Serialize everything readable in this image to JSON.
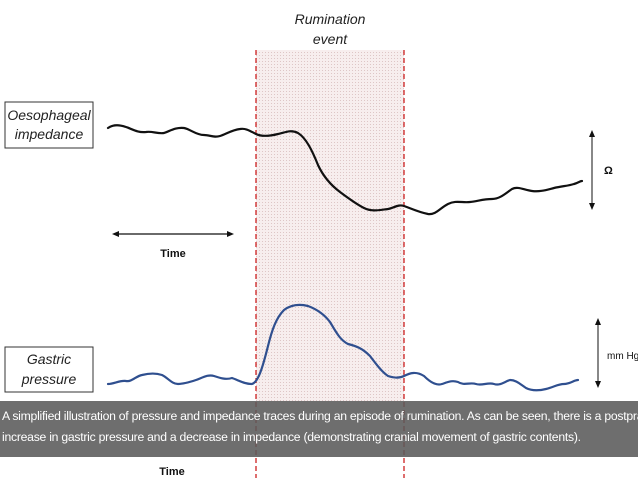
{
  "event_label": {
    "line1": "Rumination",
    "line2": "event"
  },
  "impedance_label": {
    "line1": "Oesophageal",
    "line2": "impedance"
  },
  "pressure_label": {
    "line1": "Gastric",
    "line2": "pressure"
  },
  "time_label_top": "Time",
  "time_label_bottom": "Time",
  "omega_unit": "Ω",
  "pressure_unit": "mm Hg",
  "caption": {
    "line1": "A simplified illustration of pressure and impedance traces during an episode of rumination. As can be seen, there is a postprandial",
    "line2": "increase in gastric pressure and a decrease in impedance (demonstrating cranial movement of gastric contents)."
  },
  "colors": {
    "impedance_trace": "#111111",
    "pressure_trace": "#2f4f8f",
    "event_border": "#cc2020",
    "event_shade": "#f3e6e6",
    "caption_bg": "#5a5a5a"
  }
}
